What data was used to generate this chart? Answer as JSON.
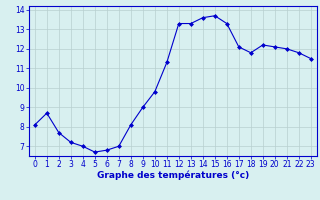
{
  "x": [
    0,
    1,
    2,
    3,
    4,
    5,
    6,
    7,
    8,
    9,
    10,
    11,
    12,
    13,
    14,
    15,
    16,
    17,
    18,
    19,
    20,
    21,
    22,
    23
  ],
  "y": [
    8.1,
    8.7,
    7.7,
    7.2,
    7.0,
    6.7,
    6.8,
    7.0,
    8.1,
    9.0,
    9.8,
    11.3,
    13.3,
    13.3,
    13.6,
    13.7,
    13.3,
    12.1,
    11.8,
    12.2,
    12.1,
    12.0,
    11.8,
    11.5
  ],
  "line_color": "#0000cc",
  "marker": "D",
  "markersize": 2.0,
  "linewidth": 0.8,
  "xlabel": "Graphe des températures (°c)",
  "xlabel_fontsize": 6.5,
  "background_color": "#d8f0f0",
  "grid_color": "#b8d0d0",
  "axis_color": "#0000cc",
  "tick_label_color": "#0000cc",
  "tick_label_fontsize": 5.5,
  "ylim": [
    6.5,
    14.2
  ],
  "xlim": [
    -0.5,
    23.5
  ],
  "yticks": [
    7,
    8,
    9,
    10,
    11,
    12,
    13,
    14
  ],
  "xtick_labels": [
    "0",
    "1",
    "2",
    "3",
    "4",
    "5",
    "6",
    "7",
    "8",
    "9",
    "10",
    "11",
    "12",
    "13",
    "14",
    "15",
    "16",
    "17",
    "18",
    "19",
    "20",
    "21",
    "22",
    "23"
  ]
}
